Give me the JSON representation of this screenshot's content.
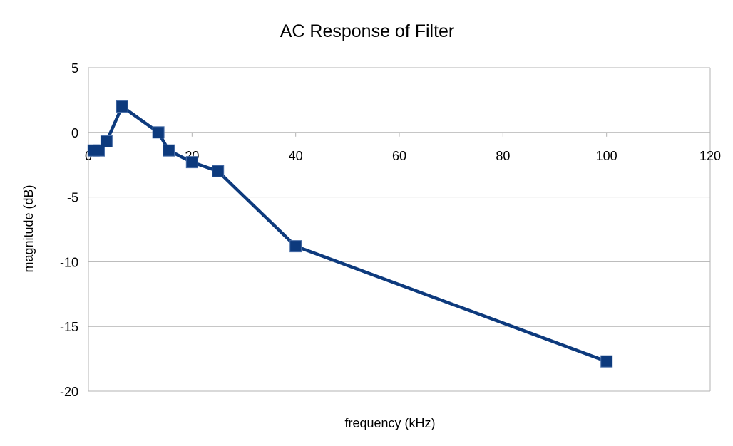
{
  "chart_data": {
    "type": "line",
    "title": "AC Response of Filter",
    "xlabel": "frequency (kHz)",
    "ylabel": "magnitude (dB)",
    "xlim": [
      0,
      120
    ],
    "ylim": [
      -20,
      5
    ],
    "xticks": [
      0,
      20,
      40,
      60,
      80,
      100,
      120
    ],
    "yticks": [
      5,
      0,
      -5,
      -10,
      -15,
      -20
    ],
    "grid": true,
    "legend": "none",
    "series": [
      {
        "color": "#0d3a7d",
        "marker": "square",
        "x": [
          1,
          2,
          3.5,
          6.5,
          13.5,
          15.5,
          20,
          25,
          40,
          100
        ],
        "y": [
          -1.4,
          -1.4,
          -0.7,
          2.0,
          0.0,
          -1.4,
          -2.3,
          -3.0,
          -8.8,
          -17.7
        ]
      }
    ]
  }
}
